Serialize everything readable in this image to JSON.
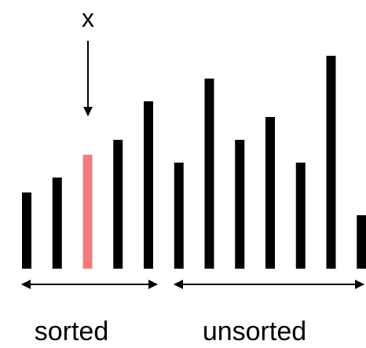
{
  "marker": {
    "label": "x"
  },
  "bars": {
    "values": [
      97,
      116,
      145,
      164,
      213,
      135,
      242,
      164,
      193,
      135,
      271,
      68
    ],
    "highlight_index": 2,
    "highlight_color": "#f47c7c",
    "default_color": "#000000"
  },
  "groups": [
    {
      "label": "sorted",
      "from_bar": 0,
      "to_bar": 4
    },
    {
      "label": "unsorted",
      "from_bar": 5,
      "to_bar": 11
    }
  ]
}
